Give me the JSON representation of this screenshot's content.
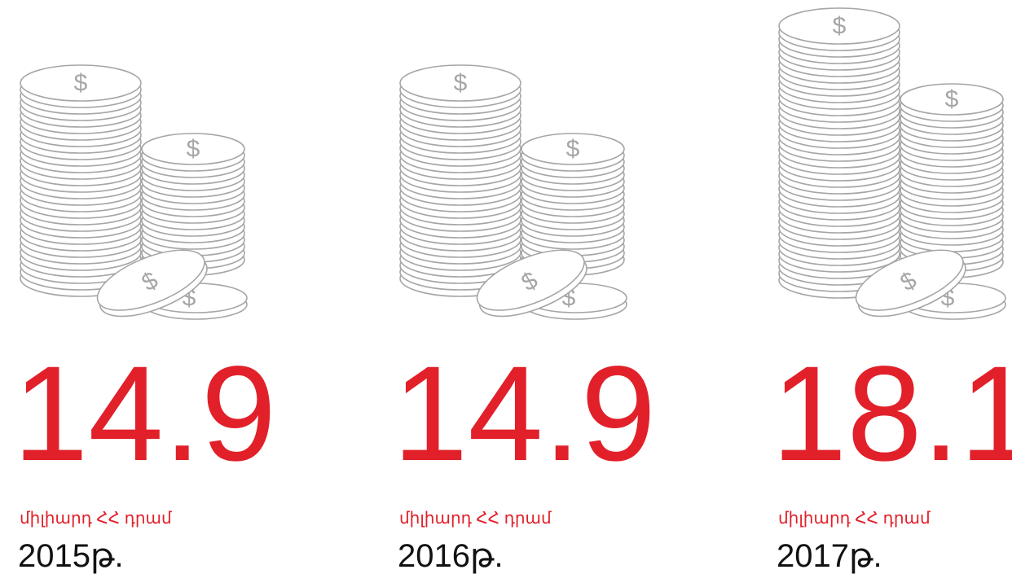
{
  "items": [
    {
      "value": "14.9",
      "unit": "միլիարդ ՀՀ դրամ",
      "year": "2015թ."
    },
    {
      "value": "14.9",
      "unit": "միլիարդ ՀՀ դրամ",
      "year": "2016թ."
    },
    {
      "value": "18.1",
      "unit": "միլիարդ ՀՀ դրամ",
      "year": "2017թ."
    }
  ]
}
